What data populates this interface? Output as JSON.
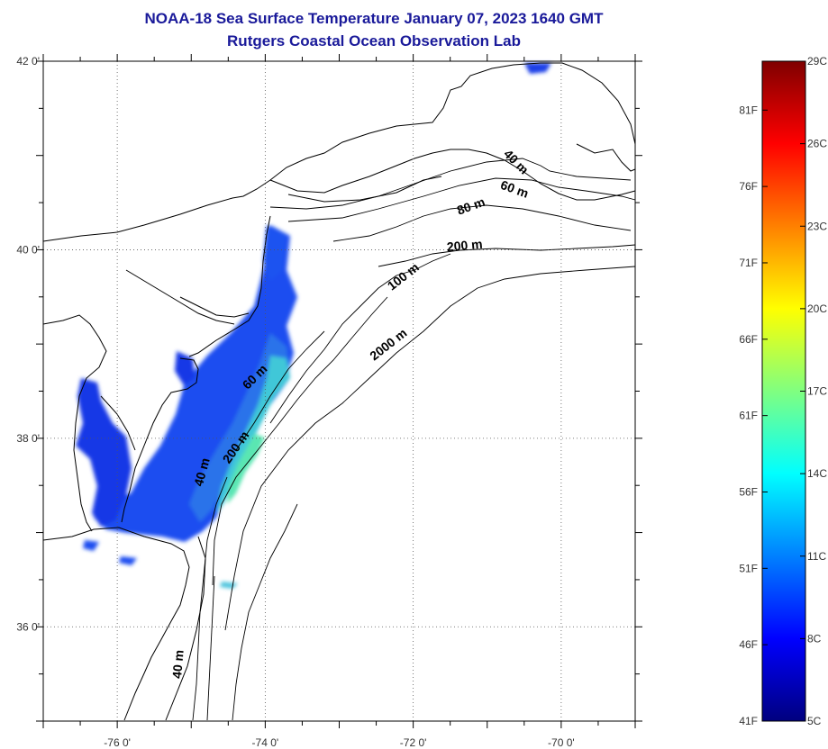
{
  "header": {
    "title": "NOAA-18 Sea Surface Temperature January 07, 2023 1640 GMT",
    "subtitle": "Rutgers Coastal Ocean Observation Lab"
  },
  "map": {
    "lon_range": [
      -77,
      -69
    ],
    "lat_range": [
      35,
      42
    ],
    "lon_ticks": [
      {
        "value": -76,
        "label": "-76 0'"
      },
      {
        "value": -74,
        "label": "-74 0'"
      },
      {
        "value": -72,
        "label": "-72 0'"
      },
      {
        "value": -70,
        "label": "-70 0'"
      }
    ],
    "lat_ticks": [
      {
        "value": 42,
        "label": "42 0'"
      },
      {
        "value": 40,
        "label": "40 0'"
      },
      {
        "value": 38,
        "label": "38 0'"
      },
      {
        "value": 36,
        "label": "36 0'"
      }
    ],
    "grid": "dotted",
    "coastline_color": "#000000",
    "isobath_labels": [
      {
        "text": "40 m",
        "lon": -70.65,
        "lat": 40.9,
        "angle": 45
      },
      {
        "text": "60 m",
        "lon": -70.65,
        "lat": 40.6,
        "angle": 20
      },
      {
        "text": "80 m",
        "lon": -71.2,
        "lat": 40.42,
        "angle": -20
      },
      {
        "text": "200 m",
        "lon": -71.3,
        "lat": 40.0,
        "angle": -5
      },
      {
        "text": "100 m",
        "lon": -72.1,
        "lat": 39.68,
        "angle": -38
      },
      {
        "text": "2000 m",
        "lon": -72.3,
        "lat": 38.96,
        "angle": -38
      },
      {
        "text": "60 m",
        "lon": -74.1,
        "lat": 38.62,
        "angle": -45
      },
      {
        "text": "200 m",
        "lon": -74.35,
        "lat": 37.88,
        "angle": -55
      },
      {
        "text": "40 m",
        "lon": -74.8,
        "lat": 37.63,
        "angle": -75
      },
      {
        "text": "40 m",
        "lon": -75.12,
        "lat": 35.6,
        "angle": -85
      }
    ]
  },
  "colorbar": {
    "min_c": 5,
    "max_c": 29,
    "celsius_ticks": [
      {
        "value": 29,
        "label": "29C"
      },
      {
        "value": 26,
        "label": "26C"
      },
      {
        "value": 23,
        "label": "23C"
      },
      {
        "value": 20,
        "label": "20C"
      },
      {
        "value": 17,
        "label": "17C"
      },
      {
        "value": 14,
        "label": "14C"
      },
      {
        "value": 11,
        "label": "11C"
      },
      {
        "value": 8,
        "label": "8C"
      },
      {
        "value": 5,
        "label": "5C"
      }
    ],
    "fahrenheit_ticks": [
      {
        "value": 81,
        "label": "81F"
      },
      {
        "value": 76,
        "label": "76F"
      },
      {
        "value": 71,
        "label": "71F"
      },
      {
        "value": 66,
        "label": "66F"
      },
      {
        "value": 61,
        "label": "61F"
      },
      {
        "value": 56,
        "label": "56F"
      },
      {
        "value": 51,
        "label": "51F"
      },
      {
        "value": 46,
        "label": "46F"
      },
      {
        "value": 41,
        "label": "41F"
      }
    ],
    "colors": [
      "#00007f",
      "#0000ff",
      "#0080ff",
      "#00ffff",
      "#80ff80",
      "#ffff00",
      "#ff8000",
      "#ff0000",
      "#7f0000"
    ]
  }
}
